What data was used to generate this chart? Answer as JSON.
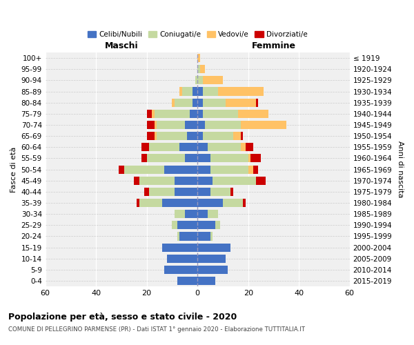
{
  "age_groups": [
    "0-4",
    "5-9",
    "10-14",
    "15-19",
    "20-24",
    "25-29",
    "30-34",
    "35-39",
    "40-44",
    "45-49",
    "50-54",
    "55-59",
    "60-64",
    "65-69",
    "70-74",
    "75-79",
    "80-84",
    "85-89",
    "90-94",
    "95-99",
    "100+"
  ],
  "birth_years": [
    "2015-2019",
    "2010-2014",
    "2005-2009",
    "2000-2004",
    "1995-1999",
    "1990-1994",
    "1985-1989",
    "1980-1984",
    "1975-1979",
    "1970-1974",
    "1965-1969",
    "1960-1964",
    "1955-1959",
    "1950-1954",
    "1945-1949",
    "1940-1944",
    "1935-1939",
    "1930-1934",
    "1925-1929",
    "1920-1924",
    "≤ 1919"
  ],
  "maschi": {
    "celibi": [
      8,
      13,
      12,
      14,
      7,
      8,
      5,
      14,
      9,
      9,
      13,
      5,
      7,
      4,
      5,
      3,
      2,
      2,
      0,
      0,
      0
    ],
    "coniugati": [
      0,
      0,
      0,
      0,
      1,
      2,
      4,
      9,
      10,
      14,
      16,
      15,
      12,
      12,
      11,
      14,
      7,
      4,
      1,
      0,
      0
    ],
    "vedovi": [
      0,
      0,
      0,
      0,
      0,
      0,
      0,
      0,
      0,
      0,
      0,
      0,
      0,
      1,
      1,
      1,
      1,
      1,
      0,
      0,
      0
    ],
    "divorziati": [
      0,
      0,
      0,
      0,
      0,
      0,
      0,
      1,
      2,
      2,
      2,
      2,
      3,
      3,
      3,
      2,
      0,
      0,
      0,
      0,
      0
    ]
  },
  "femmine": {
    "nubili": [
      7,
      12,
      11,
      13,
      5,
      7,
      4,
      10,
      5,
      6,
      5,
      5,
      4,
      2,
      3,
      2,
      2,
      2,
      0,
      0,
      0
    ],
    "coniugate": [
      0,
      0,
      0,
      0,
      1,
      2,
      4,
      8,
      8,
      17,
      15,
      15,
      13,
      12,
      14,
      14,
      9,
      6,
      2,
      1,
      0
    ],
    "vedove": [
      0,
      0,
      0,
      0,
      0,
      0,
      0,
      0,
      0,
      0,
      2,
      1,
      2,
      3,
      18,
      12,
      12,
      18,
      8,
      2,
      1
    ],
    "divorziate": [
      0,
      0,
      0,
      0,
      0,
      0,
      0,
      1,
      1,
      4,
      2,
      4,
      3,
      1,
      0,
      0,
      1,
      0,
      0,
      0,
      0
    ]
  },
  "colors": {
    "celibi": "#4472c4",
    "coniugati": "#c5d9a0",
    "vedovi": "#ffc266",
    "divorziati": "#cc0000"
  },
  "title": "Popolazione per età, sesso e stato civile - 2020",
  "subtitle": "COMUNE DI PELLEGRINO PARMENSE (PR) - Dati ISTAT 1° gennaio 2020 - Elaborazione TUTTITALIA.IT",
  "ylabel": "Fasce di età",
  "ylabel_right": "Anni di nascita",
  "xlabel_left": "Maschi",
  "xlabel_right": "Femmine",
  "legend_labels": [
    "Celibi/Nubili",
    "Coniugati/e",
    "Vedovi/e",
    "Divorziati/e"
  ],
  "xlim": 60,
  "background_color": "#f0f0f0"
}
